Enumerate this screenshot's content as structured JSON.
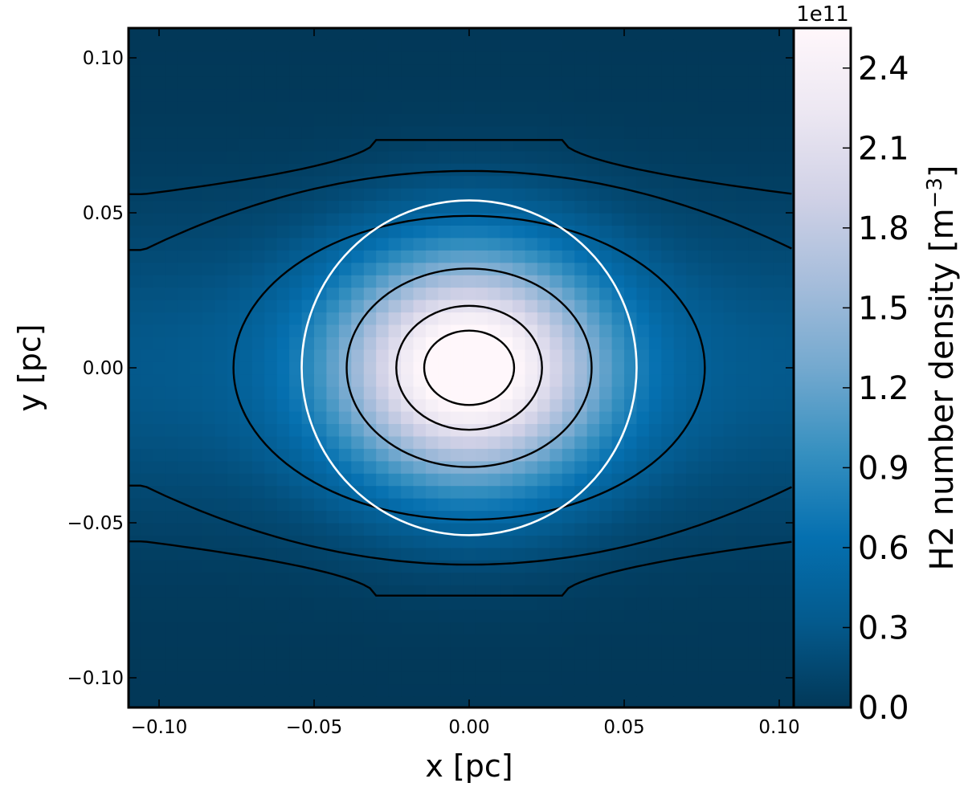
{
  "chart_data": {
    "type": "heatmap",
    "title": "",
    "xlabel": "x [pc]",
    "ylabel": "y [pc]",
    "xlim": [
      -0.11,
      0.105
    ],
    "ylim": [
      -0.11,
      0.11
    ],
    "x_ticks": [
      -0.1,
      -0.05,
      0.0,
      0.05,
      0.1
    ],
    "x_tick_labels": [
      "−0.10",
      "−0.05",
      "0.00",
      "0.05",
      "0.10"
    ],
    "y_ticks": [
      0.1,
      0.05,
      0.0,
      -0.05,
      -0.1
    ],
    "y_tick_labels": [
      "0.10",
      "0.05",
      "0.00",
      "−0.05",
      "−0.10"
    ],
    "grid": false,
    "field": {
      "quantity": "H2 number density",
      "peak": 255000000000.0,
      "center": [
        0.0,
        0.0
      ],
      "core_scale_x": 0.03,
      "core_scale_y": 0.026,
      "envelope_half_height": 0.06,
      "pixel_size": 0.004
    },
    "contours": [
      {
        "kind": "band",
        "half_height_center": 0.0735,
        "half_height_edge": 0.056,
        "flat_half_width": 0.03
      },
      {
        "kind": "lens",
        "half_height_center": 0.0635,
        "half_height_edge": 0.038
      },
      {
        "kind": "ellipse",
        "cx": 0.0,
        "cy": 0.0,
        "rx": 0.076,
        "ry": 0.049
      },
      {
        "kind": "ellipse",
        "cx": 0.0,
        "cy": 0.0,
        "rx": 0.0395,
        "ry": 0.032
      },
      {
        "kind": "ellipse",
        "cx": 0.0,
        "cy": 0.0,
        "rx": 0.0235,
        "ry": 0.02
      },
      {
        "kind": "ellipse",
        "cx": 0.0,
        "cy": 0.0,
        "rx": 0.0145,
        "ry": 0.012
      }
    ],
    "marker_circle": {
      "cx": 0.0,
      "cy": 0.0,
      "r": 0.054,
      "color": "#ffffff"
    },
    "colorbar": {
      "label": "H2 number density [m",
      "label_exponent": "−3",
      "label_end": "]",
      "offset_text": "1e11",
      "range": [
        0.0,
        2.55
      ],
      "ticks": [
        0.0,
        0.3,
        0.6,
        0.9,
        1.2,
        1.5,
        1.8,
        2.1,
        2.4
      ],
      "tick_labels": [
        "0.0",
        "0.3",
        "0.6",
        "0.9",
        "1.2",
        "1.5",
        "1.8",
        "2.1",
        "2.4"
      ],
      "colormap": "PuBu_r",
      "colormap_stops": [
        "#023858",
        "#045a8d",
        "#0570b0",
        "#3690c0",
        "#74a9cf",
        "#a6bddb",
        "#d0d1e6",
        "#ece7f2",
        "#fff7fb"
      ]
    }
  }
}
